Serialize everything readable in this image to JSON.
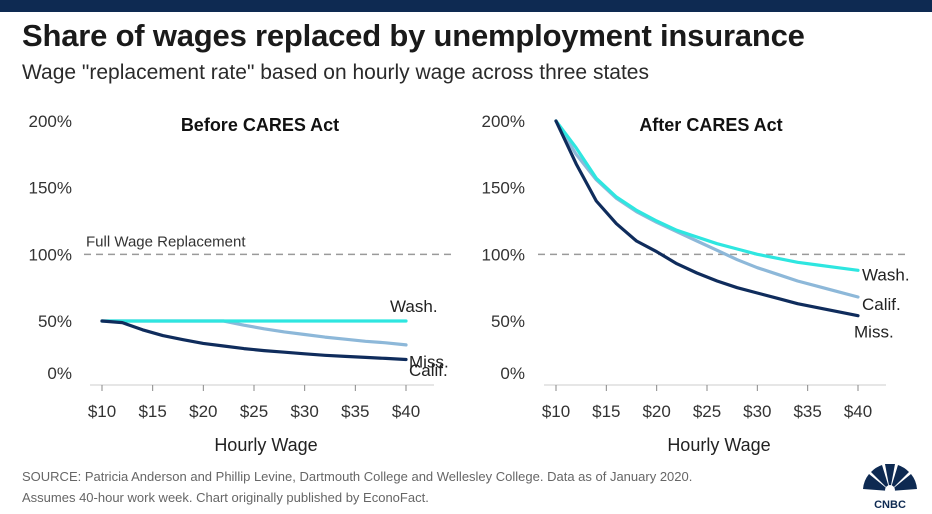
{
  "header": {
    "title": "Share of wages replaced by unemployment insurance",
    "subtitle": "Wage \"replacement rate\" based on hourly wage across three states"
  },
  "footer": {
    "source_line1": "SOURCE: Patricia Anderson and Phillip Levine, Dartmouth College and Wellesley College. Data as of January 2020.",
    "source_line2": "Assumes 40-hour work week. Chart originally published by EconoFact.",
    "logo_text": "CNBC"
  },
  "colors": {
    "topbar": "#0e2a52",
    "Wash.": "#2ee6e0",
    "Calif.": "#8db8d9",
    "Miss.": "#0f2c5c",
    "reference": "#9a9a9a"
  },
  "chart_data": [
    {
      "type": "line",
      "title": "Before CARES Act",
      "xlabel": "Hourly Wage",
      "ylabel": "",
      "x_ticks": [
        10,
        15,
        20,
        25,
        30,
        35,
        40
      ],
      "x_tick_labels": [
        "$10",
        "$15",
        "$20",
        "$25",
        "$30",
        "$35",
        "$40"
      ],
      "y_ticks": [
        0,
        50,
        100,
        150,
        200
      ],
      "y_tick_labels": [
        "0%",
        "50%",
        "100%",
        "150%",
        "200%"
      ],
      "xlim": [
        10,
        40
      ],
      "ylim": [
        0,
        200
      ],
      "grid": false,
      "reference_line": {
        "y": 100,
        "label": "Full Wage Replacement"
      },
      "x": [
        10,
        12,
        14,
        16,
        18,
        20,
        22,
        24,
        26,
        28,
        30,
        32,
        34,
        36,
        38,
        40
      ],
      "series": [
        {
          "name": "Wash.",
          "values": [
            50,
            50,
            50,
            50,
            50,
            50,
            50,
            50,
            50,
            50,
            50,
            50,
            50,
            50,
            50,
            50
          ]
        },
        {
          "name": "Calif.",
          "values": [
            50,
            50,
            50,
            50,
            50,
            50,
            50,
            46,
            42.5,
            39.5,
            37,
            34.5,
            32.5,
            30.5,
            29,
            27
          ]
        },
        {
          "name": "Miss.",
          "values": [
            50,
            48.5,
            41.5,
            36,
            32,
            28.5,
            26,
            23.5,
            21.5,
            20,
            18.5,
            17,
            16,
            15,
            14,
            13
          ]
        }
      ]
    },
    {
      "type": "line",
      "title": "After CARES Act",
      "xlabel": "Hourly Wage",
      "ylabel": "",
      "x_ticks": [
        10,
        15,
        20,
        25,
        30,
        35,
        40
      ],
      "x_tick_labels": [
        "$10",
        "$15",
        "$20",
        "$25",
        "$30",
        "$35",
        "$40"
      ],
      "y_ticks": [
        0,
        50,
        100,
        150,
        200
      ],
      "y_tick_labels": [
        "0%",
        "50%",
        "100%",
        "150%",
        "200%"
      ],
      "xlim": [
        10,
        40
      ],
      "ylim": [
        0,
        200
      ],
      "grid": false,
      "reference_line": {
        "y": 100,
        "label": ""
      },
      "x": [
        10,
        12,
        14,
        16,
        18,
        20,
        22,
        24,
        26,
        28,
        30,
        32,
        34,
        36,
        38,
        40
      ],
      "series": [
        {
          "name": "Wash.",
          "values": [
            200,
            180,
            157,
            143,
            133,
            125,
            118,
            113,
            108,
            104,
            100,
            97,
            94,
            92,
            90,
            88
          ]
        },
        {
          "name": "Calif.",
          "values": [
            200,
            175,
            156,
            142,
            132,
            124,
            117,
            110,
            103,
            96,
            90,
            85,
            80,
            76,
            72,
            68
          ]
        },
        {
          "name": "Miss.",
          "values": [
            200,
            168,
            140,
            123,
            110,
            102,
            93,
            86,
            80,
            75,
            71,
            67,
            63,
            60,
            57,
            54
          ]
        }
      ]
    }
  ]
}
